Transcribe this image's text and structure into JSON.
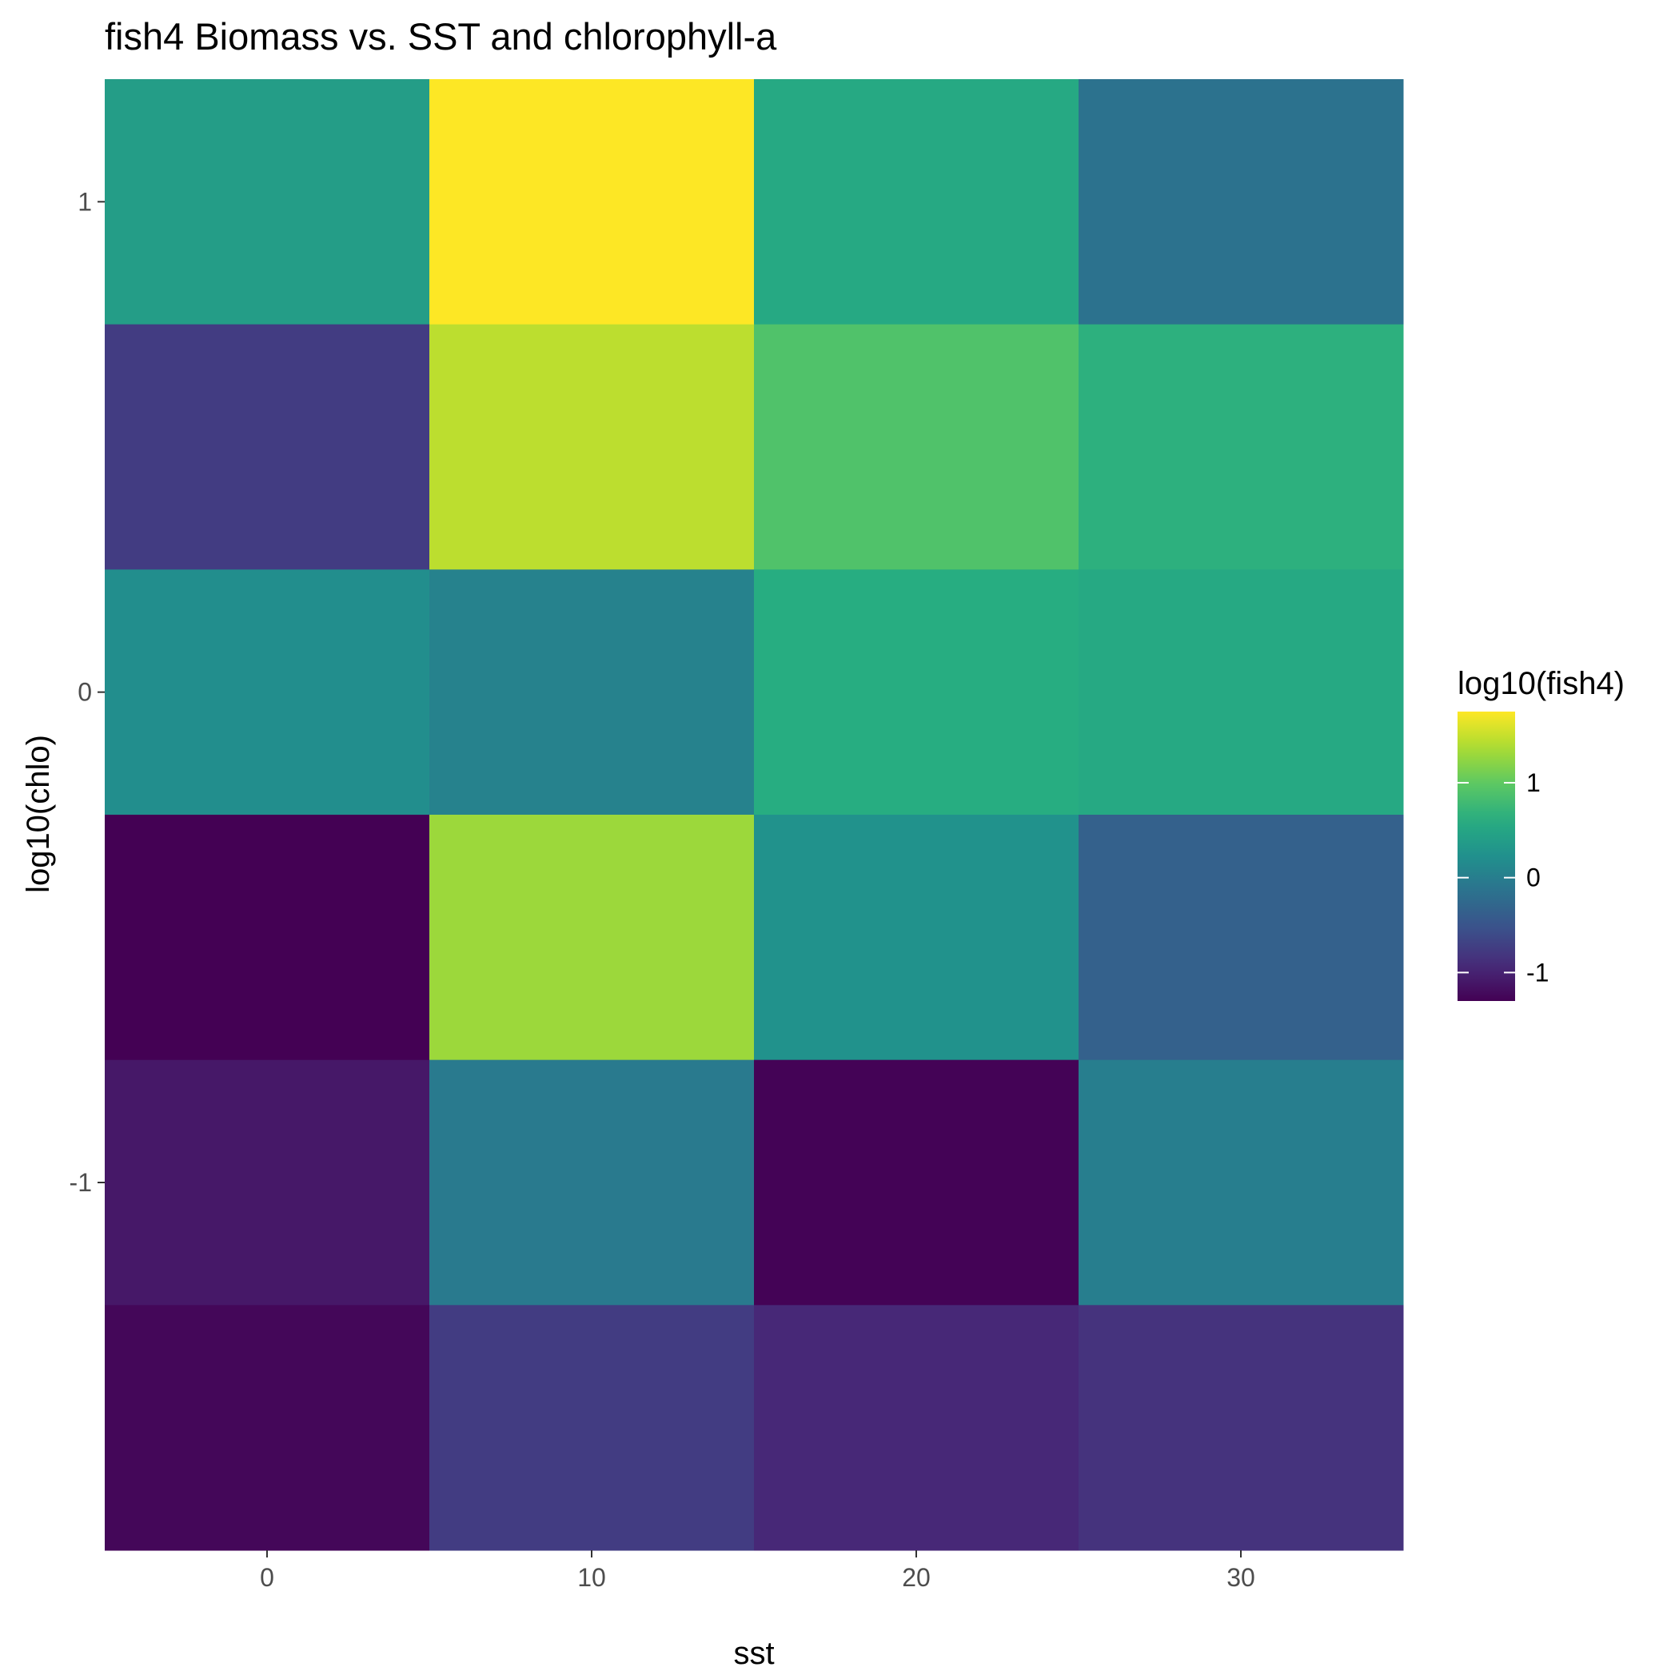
{
  "chart_data": {
    "type": "heatmap",
    "title": "fish4 Biomass vs. SST and chlorophyll-a",
    "xlabel": "sst",
    "ylabel": "log10(chlo)",
    "x_centers": [
      0,
      10,
      20,
      30
    ],
    "x_tile_width": 10,
    "y_centers": [
      1.0,
      0.5,
      0.0,
      -0.5,
      -1.0,
      -1.5
    ],
    "y_tile_height": 0.5,
    "xlim": [
      -5,
      35
    ],
    "ylim": [
      -1.75,
      1.25
    ],
    "x_ticks": [
      0,
      10,
      20,
      30
    ],
    "x_tick_labels": [
      "0",
      "10",
      "20",
      "30"
    ],
    "y_ticks": [
      1,
      0,
      -1
    ],
    "y_tick_labels": [
      "1",
      "0",
      "-1"
    ],
    "fill_label": "log10(fish4)",
    "z_rows_top_to_bottom": [
      [
        0.4,
        1.75,
        0.55,
        -0.15
      ],
      [
        -0.75,
        1.45,
        0.9,
        0.65
      ],
      [
        0.2,
        0.05,
        0.6,
        0.55
      ],
      [
        -1.3,
        1.3,
        0.25,
        -0.35
      ],
      [
        -1.1,
        -0.05,
        -1.28,
        0.0
      ],
      [
        -1.25,
        -0.75,
        -0.95,
        -0.85
      ]
    ],
    "colorscale": "viridis",
    "z_range": [
      -1.3,
      1.75
    ],
    "legend_ticks": [
      1,
      0,
      -1
    ],
    "legend_tick_labels": [
      "1",
      "0",
      "-1"
    ],
    "legend_position": "right",
    "grid": true,
    "panel_background": "#ebebeb",
    "grid_color": "#ffffff"
  }
}
